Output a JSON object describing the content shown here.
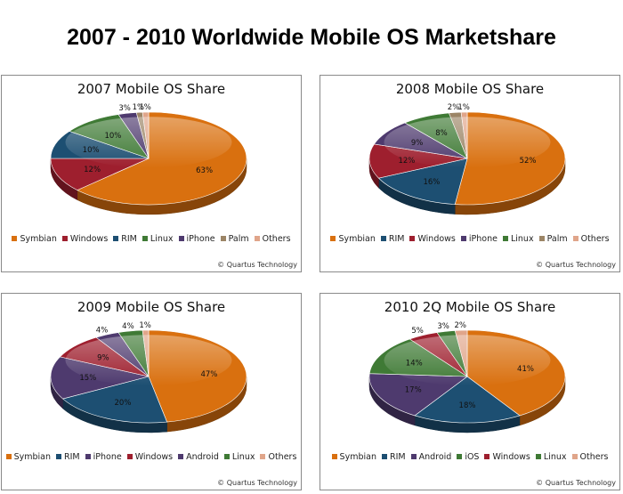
{
  "title": "2007 - 2010 Worldwide Mobile OS Marketshare",
  "credit": "© Quartus Technology",
  "colors": {
    "Symbian": "#d9700f",
    "Windows": "#9e1f2e",
    "RIM": "#1d4f72",
    "Linux": "#3f7a35",
    "iPhone": "#4e3a6e",
    "iOS": "#3f7a35",
    "Android": "#4e3a6e",
    "Palm": "#9c8566",
    "Others": "#e0a58a"
  },
  "chart_data": [
    {
      "type": "pie",
      "title": "2007 Mobile OS Share",
      "categories": [
        "Symbian",
        "Windows",
        "RIM",
        "Linux",
        "iPhone",
        "Palm",
        "Others"
      ],
      "values": [
        63,
        12,
        10,
        10,
        3,
        1,
        1
      ],
      "value_labels": [
        "63%",
        "12%",
        "10%",
        "10%",
        "3%",
        "1%",
        "1%"
      ],
      "legend_position": "bottom"
    },
    {
      "type": "pie",
      "title": "2008 Mobile OS Share",
      "categories": [
        "Symbian",
        "RIM",
        "Windows",
        "iPhone",
        "Linux",
        "Palm",
        "Others"
      ],
      "values": [
        52,
        16,
        12,
        9,
        8,
        2,
        1
      ],
      "value_labels": [
        "52%",
        "16%",
        "12%",
        "9%",
        "8%",
        "2%",
        "1%"
      ],
      "legend_position": "bottom"
    },
    {
      "type": "pie",
      "title": "2009 Mobile OS Share",
      "categories": [
        "Symbian",
        "RIM",
        "iPhone",
        "Windows",
        "Android",
        "Linux",
        "Others"
      ],
      "values": [
        47,
        20,
        15,
        9,
        4,
        4,
        1
      ],
      "value_labels": [
        "47%",
        "20%",
        "15%",
        "9%",
        "4%",
        "4%",
        "1%"
      ],
      "legend_position": "bottom"
    },
    {
      "type": "pie",
      "title": "2010 2Q Mobile OS Share",
      "categories": [
        "Symbian",
        "RIM",
        "Android",
        "iOS",
        "Windows",
        "Linux",
        "Others"
      ],
      "values": [
        41,
        18,
        17,
        14,
        5,
        3,
        2
      ],
      "value_labels": [
        "41%",
        "18%",
        "17%",
        "14%",
        "5%",
        "3%",
        "2%"
      ],
      "legend_position": "bottom"
    }
  ]
}
